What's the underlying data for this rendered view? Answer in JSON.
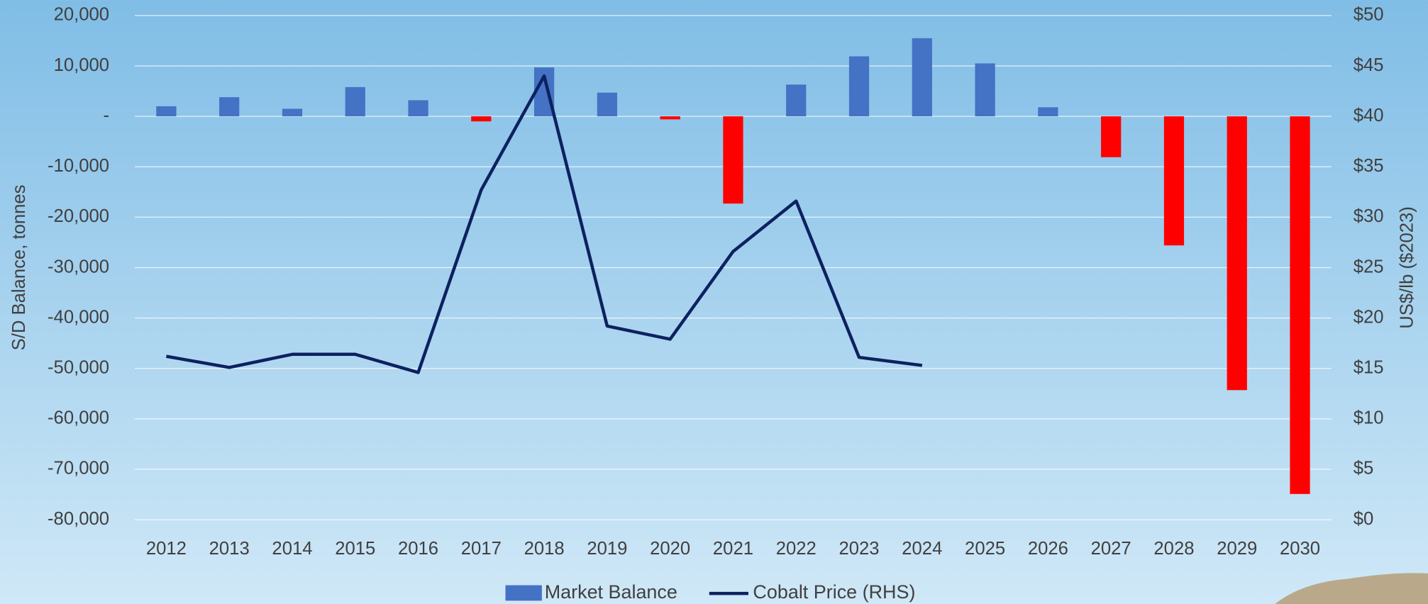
{
  "chart_data": {
    "type": "bar_line",
    "categories": [
      "2012",
      "2013",
      "2014",
      "2015",
      "2016",
      "2017",
      "2018",
      "2019",
      "2020",
      "2021",
      "2022",
      "2023",
      "2024",
      "2025",
      "2026",
      "2027",
      "2028",
      "2029",
      "2030"
    ],
    "series": [
      {
        "name": "Market Balance",
        "type": "bar",
        "color": "#4472c4",
        "negative_color": "#ff0000",
        "values": [
          2000,
          3800,
          1500,
          5800,
          3200,
          -1000,
          9700,
          4700,
          -600,
          -17300,
          6300,
          11900,
          15500,
          10500,
          1800,
          -8100,
          -25600,
          -54300,
          -74900
        ]
      },
      {
        "name": "Cobalt Price (RHS)",
        "type": "line",
        "axis": "y2",
        "color": "#0d2160",
        "values": [
          16.2,
          15.1,
          16.4,
          16.4,
          14.6,
          32.7,
          44.0,
          19.2,
          17.9,
          26.6,
          31.6,
          16.1,
          15.3,
          null,
          null,
          null,
          null,
          null,
          null
        ]
      }
    ],
    "ylabel": "S/D Balance, tonnes",
    "y2label": "US$/lb ($2023)",
    "ylim": [
      -80000,
      20000
    ],
    "yticks": [
      {
        "value": -80000,
        "label": "-80,000"
      },
      {
        "value": -70000,
        "label": "-70,000"
      },
      {
        "value": -60000,
        "label": "-60,000"
      },
      {
        "value": -50000,
        "label": "-50,000"
      },
      {
        "value": -40000,
        "label": "-40,000"
      },
      {
        "value": -30000,
        "label": "-30,000"
      },
      {
        "value": -20000,
        "label": "-20,000"
      },
      {
        "value": -10000,
        "label": "-10,000"
      },
      {
        "value": 0,
        "label": "-"
      },
      {
        "value": 10000,
        "label": "10,000"
      },
      {
        "value": 20000,
        "label": "20,000"
      }
    ],
    "y2lim": [
      0,
      50
    ],
    "y2ticks": [
      {
        "value": 0,
        "label": "$0"
      },
      {
        "value": 5,
        "label": "$5"
      },
      {
        "value": 10,
        "label": "$10"
      },
      {
        "value": 15,
        "label": "$15"
      },
      {
        "value": 20,
        "label": "$20"
      },
      {
        "value": 25,
        "label": "$25"
      },
      {
        "value": 30,
        "label": "$30"
      },
      {
        "value": 35,
        "label": "$35"
      },
      {
        "value": 40,
        "label": "$40"
      },
      {
        "value": 45,
        "label": "$45"
      },
      {
        "value": 50,
        "label": "$50"
      }
    ],
    "grid": true,
    "legend": "bottom"
  }
}
